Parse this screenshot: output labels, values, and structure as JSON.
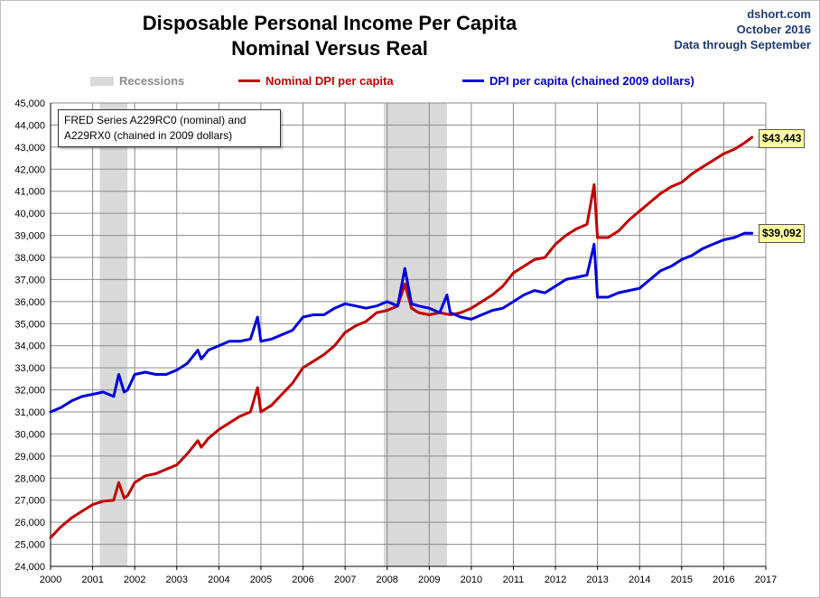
{
  "meta": {
    "site": "dshort.com",
    "date": "October 2016",
    "through": "Data through September"
  },
  "note": "FRED Series A229RC0 (nominal) and A229RX0 (chained in 2009 dollars)",
  "callouts": {
    "nominal": "$43,443",
    "real": "$39,092"
  },
  "colors": {
    "nominal": "#c00000",
    "real": "#0000dd",
    "recession": "#d9d9d9"
  },
  "chart_data": {
    "type": "line",
    "title": "Disposable Personal Income Per Capita",
    "subtitle": "Nominal Versus Real",
    "xlim": [
      2000,
      2017
    ],
    "ylim": [
      24000,
      45000
    ],
    "x_ticks": [
      "2000",
      "2001",
      "2002",
      "2003",
      "2004",
      "2005",
      "2006",
      "2007",
      "2008",
      "2009",
      "2010",
      "2011",
      "2012",
      "2013",
      "2014",
      "2015",
      "2016",
      "2017"
    ],
    "y_ticks": [
      "24,000",
      "25,000",
      "26,000",
      "27,000",
      "28,000",
      "29,000",
      "30,000",
      "31,000",
      "32,000",
      "33,000",
      "34,000",
      "35,000",
      "36,000",
      "37,000",
      "38,000",
      "39,000",
      "40,000",
      "41,000",
      "42,000",
      "43,000",
      "44,000",
      "45,000"
    ],
    "grid": true,
    "recessions": [
      [
        2001.17,
        2001.83
      ],
      [
        2007.92,
        2009.42
      ]
    ],
    "legend": [
      "Recessions",
      "Nominal DPI per capita",
      "DPI per capita (chained 2009 dollars)"
    ],
    "series": [
      {
        "name": "Nominal DPI per capita",
        "x": [
          2000.0,
          2000.25,
          2000.5,
          2000.75,
          2001.0,
          2001.25,
          2001.5,
          2001.62,
          2001.75,
          2001.83,
          2002.0,
          2002.25,
          2002.5,
          2002.75,
          2003.0,
          2003.25,
          2003.5,
          2003.58,
          2003.67,
          2003.75,
          2004.0,
          2004.25,
          2004.5,
          2004.75,
          2004.92,
          2005.0,
          2005.25,
          2005.5,
          2005.75,
          2006.0,
          2006.25,
          2006.5,
          2006.75,
          2007.0,
          2007.25,
          2007.5,
          2007.75,
          2008.0,
          2008.25,
          2008.42,
          2008.58,
          2008.75,
          2009.0,
          2009.25,
          2009.5,
          2009.75,
          2010.0,
          2010.25,
          2010.5,
          2010.75,
          2011.0,
          2011.25,
          2011.5,
          2011.75,
          2012.0,
          2012.25,
          2012.5,
          2012.75,
          2012.92,
          2013.0,
          2013.25,
          2013.5,
          2013.75,
          2014.0,
          2014.25,
          2014.5,
          2014.75,
          2015.0,
          2015.25,
          2015.5,
          2015.75,
          2016.0,
          2016.25,
          2016.5,
          2016.67
        ],
        "values": [
          25300,
          25800,
          26200,
          26500,
          26800,
          26950,
          27000,
          27800,
          27100,
          27200,
          27800,
          28100,
          28200,
          28400,
          28600,
          29100,
          29700,
          29400,
          29600,
          29800,
          30200,
          30500,
          30800,
          31000,
          32100,
          31000,
          31300,
          31800,
          32300,
          33000,
          33300,
          33600,
          34000,
          34600,
          34900,
          35100,
          35500,
          35600,
          35800,
          36800,
          35700,
          35500,
          35400,
          35500,
          35400,
          35500,
          35700,
          36000,
          36300,
          36700,
          37300,
          37600,
          37900,
          38000,
          38600,
          39000,
          39300,
          39500,
          41300,
          38900,
          38900,
          39200,
          39700,
          40100,
          40500,
          40900,
          41200,
          41400,
          41800,
          42100,
          42400,
          42700,
          42900,
          43200,
          43443
        ]
      },
      {
        "name": "DPI per capita (chained 2009 dollars)",
        "x": [
          2000.0,
          2000.25,
          2000.5,
          2000.75,
          2001.0,
          2001.25,
          2001.5,
          2001.62,
          2001.75,
          2001.83,
          2002.0,
          2002.25,
          2002.5,
          2002.75,
          2003.0,
          2003.25,
          2003.5,
          2003.58,
          2003.67,
          2003.75,
          2004.0,
          2004.25,
          2004.5,
          2004.75,
          2004.92,
          2005.0,
          2005.25,
          2005.5,
          2005.75,
          2006.0,
          2006.25,
          2006.5,
          2006.75,
          2007.0,
          2007.25,
          2007.5,
          2007.75,
          2008.0,
          2008.25,
          2008.42,
          2008.58,
          2008.75,
          2009.0,
          2009.25,
          2009.42,
          2009.5,
          2009.75,
          2010.0,
          2010.25,
          2010.5,
          2010.75,
          2011.0,
          2011.25,
          2011.5,
          2011.75,
          2012.0,
          2012.25,
          2012.5,
          2012.75,
          2012.92,
          2013.0,
          2013.25,
          2013.5,
          2013.75,
          2014.0,
          2014.25,
          2014.5,
          2014.75,
          2015.0,
          2015.25,
          2015.5,
          2015.75,
          2016.0,
          2016.25,
          2016.5,
          2016.67
        ],
        "values": [
          31000,
          31200,
          31500,
          31700,
          31800,
          31900,
          31700,
          32700,
          31900,
          32000,
          32700,
          32800,
          32700,
          32700,
          32900,
          33200,
          33800,
          33400,
          33600,
          33800,
          34000,
          34200,
          34200,
          34300,
          35300,
          34200,
          34300,
          34500,
          34700,
          35300,
          35400,
          35400,
          35700,
          35900,
          35800,
          35700,
          35800,
          36000,
          35800,
          37500,
          35900,
          35800,
          35700,
          35500,
          36300,
          35500,
          35300,
          35200,
          35400,
          35600,
          35700,
          36000,
          36300,
          36500,
          36400,
          36700,
          37000,
          37100,
          37200,
          38600,
          36200,
          36200,
          36400,
          36500,
          36600,
          37000,
          37400,
          37600,
          37900,
          38100,
          38400,
          38600,
          38800,
          38900,
          39100,
          39092
        ]
      }
    ]
  }
}
